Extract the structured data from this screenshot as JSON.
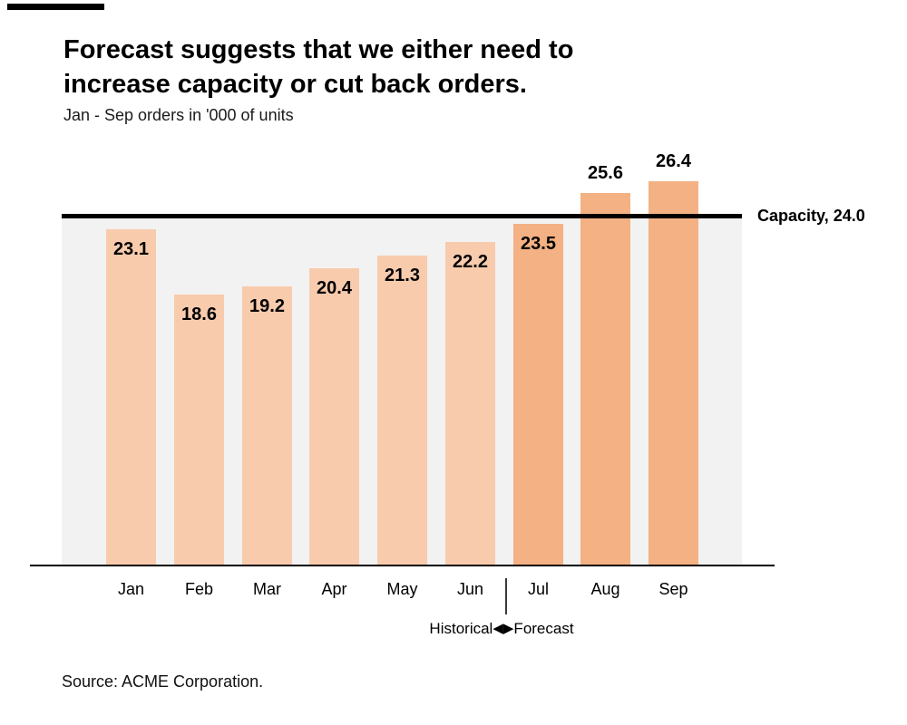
{
  "title_lines": [
    "Forecast suggests that we either need to",
    "increase capacity or cut back orders."
  ],
  "subtitle": "Jan - Sep orders in '000 of units",
  "source": {
    "text": "Source: ACME Corporation."
  },
  "annotation": {
    "left_label": "Historical",
    "right_label": "Forecast",
    "left_arrow": "◀",
    "right_arrow": "▶"
  },
  "chart_data": {
    "type": "bar",
    "title": "Forecast suggests that we either need to increase capacity or cut back orders.",
    "subtitle": "Jan - Sep orders in '000 of units",
    "categories": [
      "Jan",
      "Feb",
      "Mar",
      "Apr",
      "May",
      "Jun",
      "Jul",
      "Aug",
      "Sep"
    ],
    "values": [
      23.1,
      18.6,
      19.2,
      20.4,
      21.3,
      22.2,
      23.5,
      25.6,
      26.4
    ],
    "segments": [
      "historical",
      "historical",
      "historical",
      "historical",
      "historical",
      "historical",
      "forecast",
      "forecast",
      "forecast"
    ],
    "series": [
      {
        "name": "Historical",
        "values": [
          23.1,
          18.6,
          19.2,
          20.4,
          21.3,
          22.2,
          null,
          null,
          null
        ]
      },
      {
        "name": "Forecast",
        "values": [
          null,
          null,
          null,
          null,
          null,
          null,
          23.5,
          25.6,
          26.4
        ]
      }
    ],
    "reference_line": {
      "label": "Capacity, 24.0",
      "value": 24.0
    },
    "xlabel": "",
    "ylabel": "",
    "ylim": [
      0,
      28
    ],
    "grid": false,
    "legend_position": "none",
    "value_labels_shown": true,
    "colors": {
      "historical": "#F8CBAD",
      "forecast": "#F4B183",
      "plot_background": "#F2F2F2",
      "reference_line": "#000000",
      "text": "#000000"
    }
  }
}
